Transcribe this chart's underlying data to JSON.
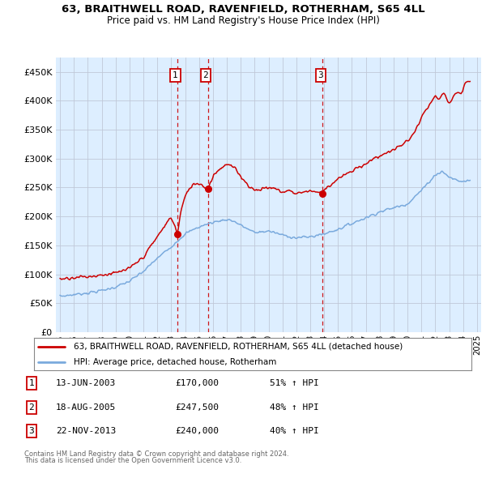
{
  "title1": "63, BRAITHWELL ROAD, RAVENFIELD, ROTHERHAM, S65 4LL",
  "title2": "Price paid vs. HM Land Registry's House Price Index (HPI)",
  "legend_line1": "63, BRAITHWELL ROAD, RAVENFIELD, ROTHERHAM, S65 4LL (detached house)",
  "legend_line2": "HPI: Average price, detached house, Rotherham",
  "transactions": [
    {
      "num": 1,
      "date": "13-JUN-2003",
      "price": "£170,000",
      "pct": "51%",
      "dir": "↑"
    },
    {
      "num": 2,
      "date": "18-AUG-2005",
      "price": "£247,500",
      "pct": "48%",
      "dir": "↑"
    },
    {
      "num": 3,
      "date": "22-NOV-2013",
      "price": "£240,000",
      "pct": "40%",
      "dir": "↑"
    }
  ],
  "footer1": "Contains HM Land Registry data © Crown copyright and database right 2024.",
  "footer2": "This data is licensed under the Open Government Licence v3.0.",
  "hpi_color": "#7aaadd",
  "price_color": "#cc0000",
  "vline_color": "#cc0000",
  "background_color": "#ddeeff",
  "grid_color": "#c0c8d8",
  "ylim": [
    0,
    475000
  ],
  "yticks": [
    0,
    50000,
    100000,
    150000,
    200000,
    250000,
    300000,
    350000,
    400000,
    450000
  ],
  "xlim_start": 1994.7,
  "xlim_end": 2025.3,
  "trans_years": [
    2003.449,
    2005.63,
    2013.893
  ],
  "trans_prices": [
    170000,
    247500,
    240000
  ],
  "trans1_dot_price": 170000,
  "trans2_dot_price": 247500,
  "trans3_dot_price": 240000
}
